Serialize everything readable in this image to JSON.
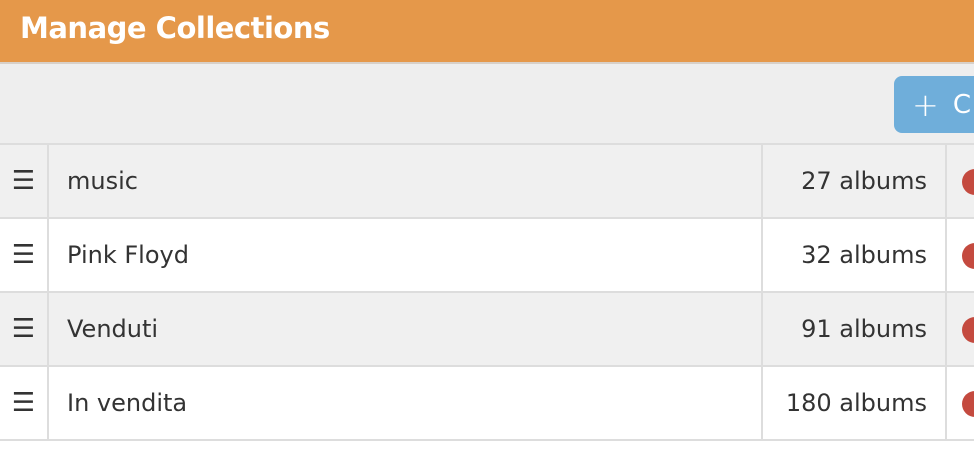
{
  "header": {
    "title": "Manage Collections"
  },
  "toolbar": {
    "create_label": "C",
    "create_icon": "plus-icon",
    "button_color": "#6FAEDA"
  },
  "colors": {
    "header": "#E5984A",
    "delete": "#C44A3F"
  },
  "collections": [
    {
      "name": "music",
      "count": "27 albums"
    },
    {
      "name": "Pink Floyd",
      "count": "32 albums"
    },
    {
      "name": "Venduti",
      "count": "91 albums"
    },
    {
      "name": "In vendita",
      "count": "180 albums"
    }
  ]
}
